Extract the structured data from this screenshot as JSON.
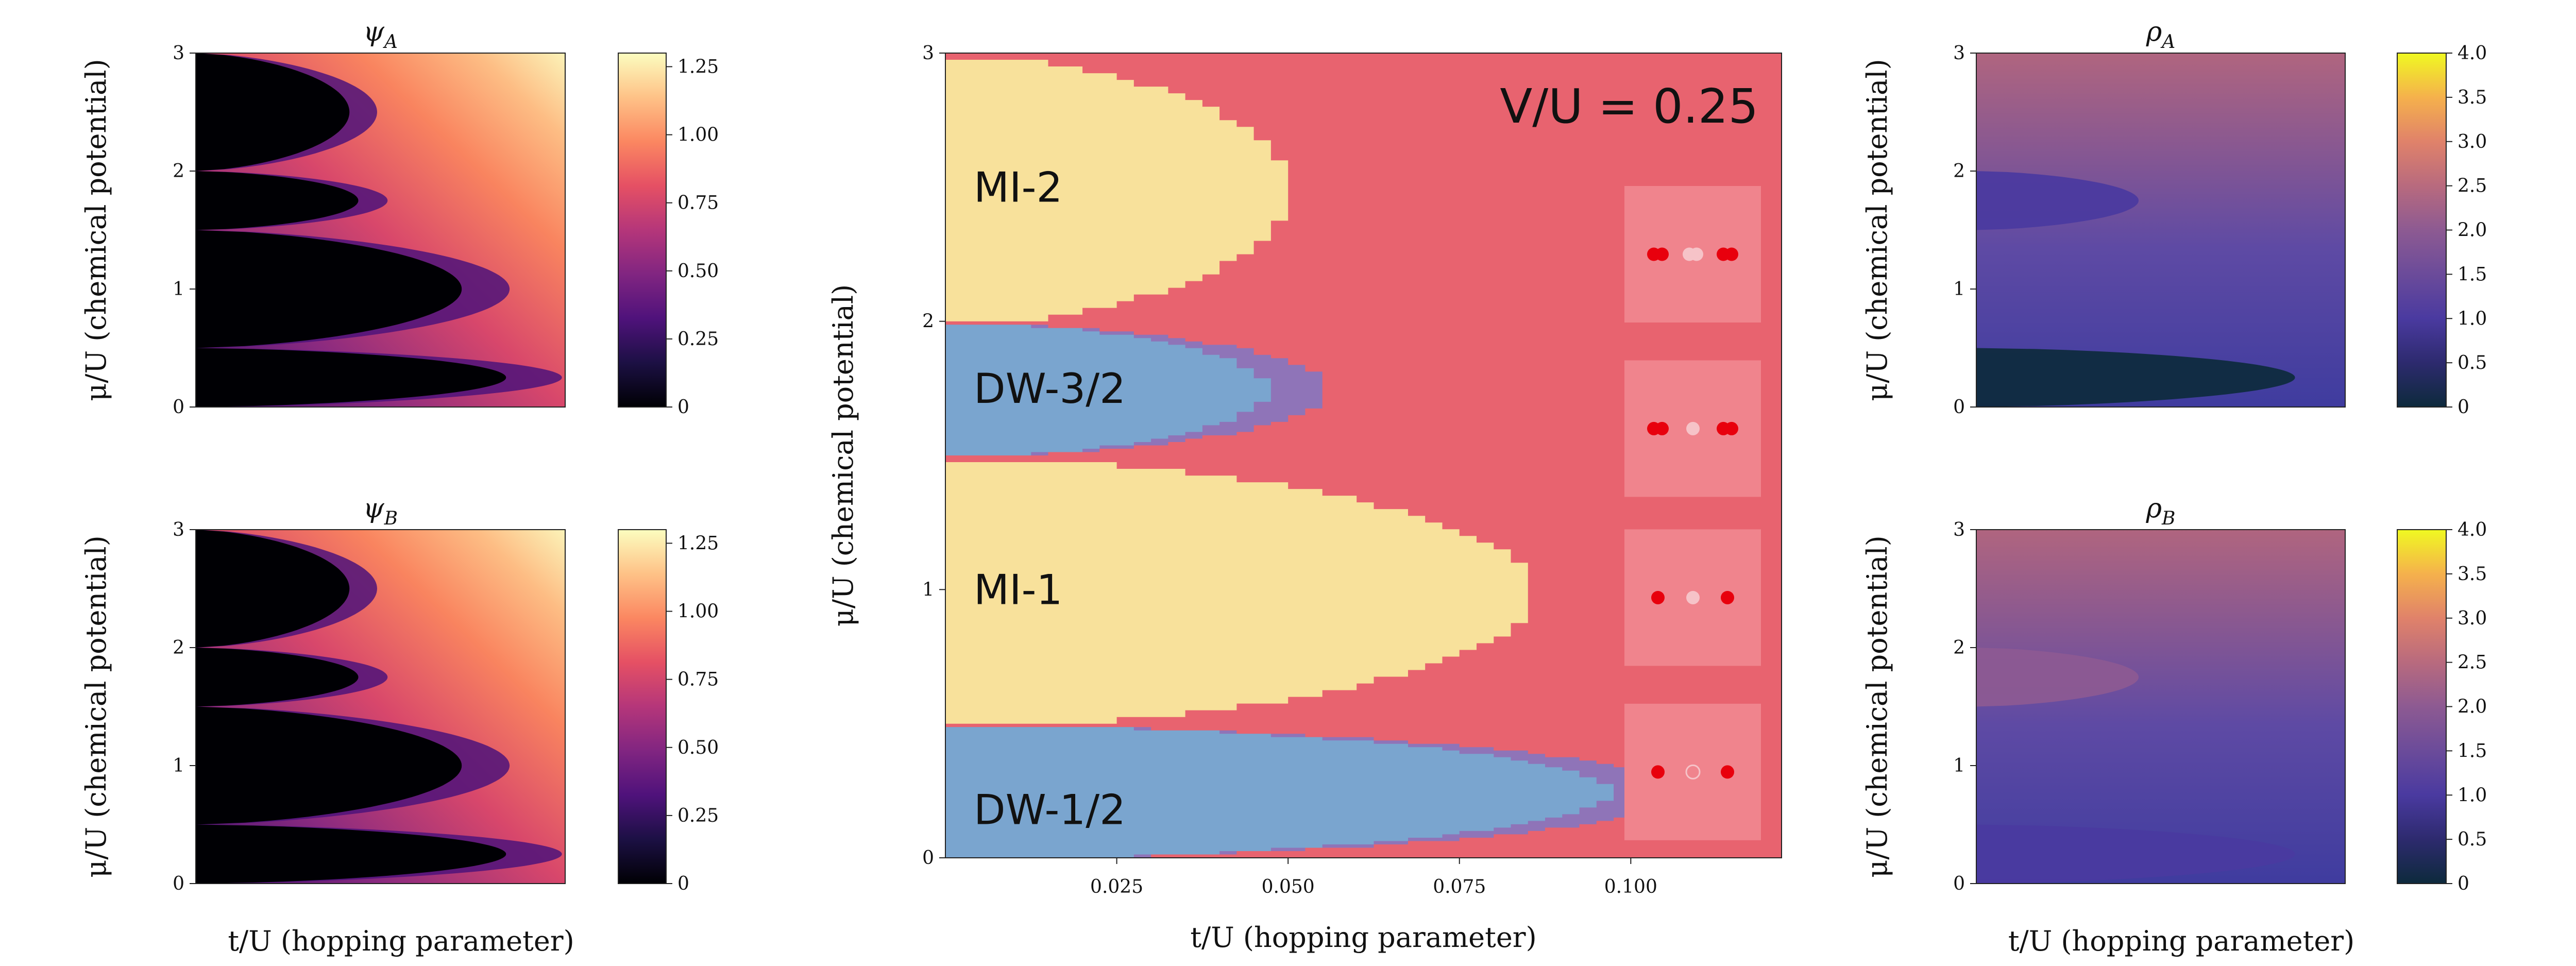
{
  "chart_data": [
    {
      "id": "psiA",
      "type": "heatmap",
      "title": "ψ",
      "title_sub": "A",
      "xlabel": "t/U (hopping parameter)",
      "ylabel": "μ/U (chemical potential)",
      "xlim": [
        0,
        0.125
      ],
      "ylim": [
        0,
        3
      ],
      "yticks": [
        "0",
        "1",
        "2",
        "3"
      ],
      "colormap": "magma",
      "colorbar": {
        "min": 0,
        "max": 1.3,
        "ticks": [
          "0",
          "0.25",
          "0.50",
          "0.75",
          "1.00",
          "1.25"
        ]
      },
      "lobes": [
        {
          "mu_range": [
            0,
            0.5
          ],
          "tip_t": 0.105
        },
        {
          "mu_range": [
            0.5,
            1.5
          ],
          "tip_t": 0.09
        },
        {
          "mu_range": [
            1.5,
            2.0
          ],
          "tip_t": 0.055
        },
        {
          "mu_range": [
            2.0,
            3.0
          ],
          "tip_t": 0.052
        }
      ]
    },
    {
      "id": "psiB",
      "type": "heatmap",
      "title": "ψ",
      "title_sub": "B",
      "xlabel": "t/U (hopping parameter)",
      "ylabel": "μ/U (chemical potential)",
      "xlim": [
        0,
        0.125
      ],
      "ylim": [
        0,
        3
      ],
      "yticks": [
        "0",
        "1",
        "2",
        "3"
      ],
      "colormap": "magma",
      "colorbar": {
        "min": 0,
        "max": 1.3,
        "ticks": [
          "0",
          "0.25",
          "0.50",
          "0.75",
          "1.00",
          "1.25"
        ]
      },
      "lobes": [
        {
          "mu_range": [
            0,
            0.5
          ],
          "tip_t": 0.105
        },
        {
          "mu_range": [
            0.5,
            1.5
          ],
          "tip_t": 0.09
        },
        {
          "mu_range": [
            1.5,
            2.0
          ],
          "tip_t": 0.055
        },
        {
          "mu_range": [
            2.0,
            3.0
          ],
          "tip_t": 0.052
        }
      ]
    },
    {
      "id": "phase",
      "type": "heatmap",
      "title": "V/U = 0.25",
      "xlabel": "t/U (hopping parameter)",
      "ylabel": "μ/U (chemical potential)",
      "xlim": [
        0,
        0.122
      ],
      "ylim": [
        0,
        3
      ],
      "xticks": [
        {
          "v": 0.025,
          "label": "0.025"
        },
        {
          "v": 0.05,
          "label": "0.050"
        },
        {
          "v": 0.075,
          "label": "0.075"
        },
        {
          "v": 0.1,
          "label": "0.100"
        }
      ],
      "yticks": [
        "0",
        "1",
        "2",
        "3"
      ],
      "colors": {
        "superfluid": "#e8636f",
        "mott": "#f8e19b",
        "density_wave": "#7aa5cf",
        "supersolid": "#8f74b8",
        "inset_bg": "#f0848d",
        "particle": "#e8000d",
        "hole": "#f6c3c8"
      },
      "phases": [
        {
          "label": "DW-1/2",
          "type": "density_wave",
          "mu_range": [
            0,
            0.5
          ],
          "tip_t": 0.097,
          "supersolid_tip_t": 0.108
        },
        {
          "label": "MI-1",
          "type": "mott",
          "mu_range": [
            0.5,
            1.5
          ],
          "tip_t": 0.086
        },
        {
          "label": "DW-3/2",
          "type": "density_wave",
          "mu_range": [
            1.5,
            2.0
          ],
          "tip_t": 0.047,
          "supersolid_tip_t": 0.056
        },
        {
          "label": "MI-2",
          "type": "mott",
          "mu_range": [
            2.0,
            3.0
          ],
          "tip_t": 0.05
        }
      ],
      "insets": [
        {
          "mu": 2.25,
          "pattern": [
            "2",
            "2h",
            "2"
          ]
        },
        {
          "mu": 1.6,
          "pattern": [
            "2",
            "h",
            "2"
          ]
        },
        {
          "mu": 0.97,
          "pattern": [
            "1",
            "h",
            "1"
          ]
        },
        {
          "mu": 0.32,
          "pattern": [
            "1",
            "o",
            "1"
          ]
        }
      ]
    },
    {
      "id": "rhoA",
      "type": "heatmap",
      "title": "ρ",
      "title_sub": "A",
      "xlabel": "t/U (hopping parameter)",
      "ylabel": "μ/U (chemical potential)",
      "xlim": [
        0,
        0.125
      ],
      "ylim": [
        0,
        3
      ],
      "yticks": [
        "0",
        "1",
        "2",
        "3"
      ],
      "colormap": "plasma",
      "colorbar": {
        "min": 0,
        "max": 4.0,
        "ticks": [
          "0",
          "0.5",
          "1.0",
          "1.5",
          "2.0",
          "2.5",
          "3.0",
          "3.5",
          "4.0"
        ]
      },
      "plateaus": [
        {
          "mu_range": [
            0,
            0.5
          ],
          "value": 0.0,
          "tip_t": 0.108
        },
        {
          "mu_range": [
            1.5,
            2.0
          ],
          "value": 1.0,
          "tip_t": 0.055
        }
      ]
    },
    {
      "id": "rhoB",
      "type": "heatmap",
      "title": "ρ",
      "title_sub": "B",
      "xlabel": "t/U (hopping parameter)",
      "ylabel": "μ/U (chemical potential)",
      "xlim": [
        0,
        0.125
      ],
      "ylim": [
        0,
        3
      ],
      "yticks": [
        "0",
        "1",
        "2",
        "3"
      ],
      "colormap": "plasma",
      "colorbar": {
        "min": 0,
        "max": 4.0,
        "ticks": [
          "0",
          "0.5",
          "1.0",
          "1.5",
          "2.0",
          "2.5",
          "3.0",
          "3.5",
          "4.0"
        ]
      },
      "plateaus": [
        {
          "mu_range": [
            0,
            0.5
          ],
          "value": 1.0,
          "tip_t": 0.108
        },
        {
          "mu_range": [
            1.5,
            2.0
          ],
          "value": 2.0,
          "tip_t": 0.055
        }
      ]
    }
  ]
}
